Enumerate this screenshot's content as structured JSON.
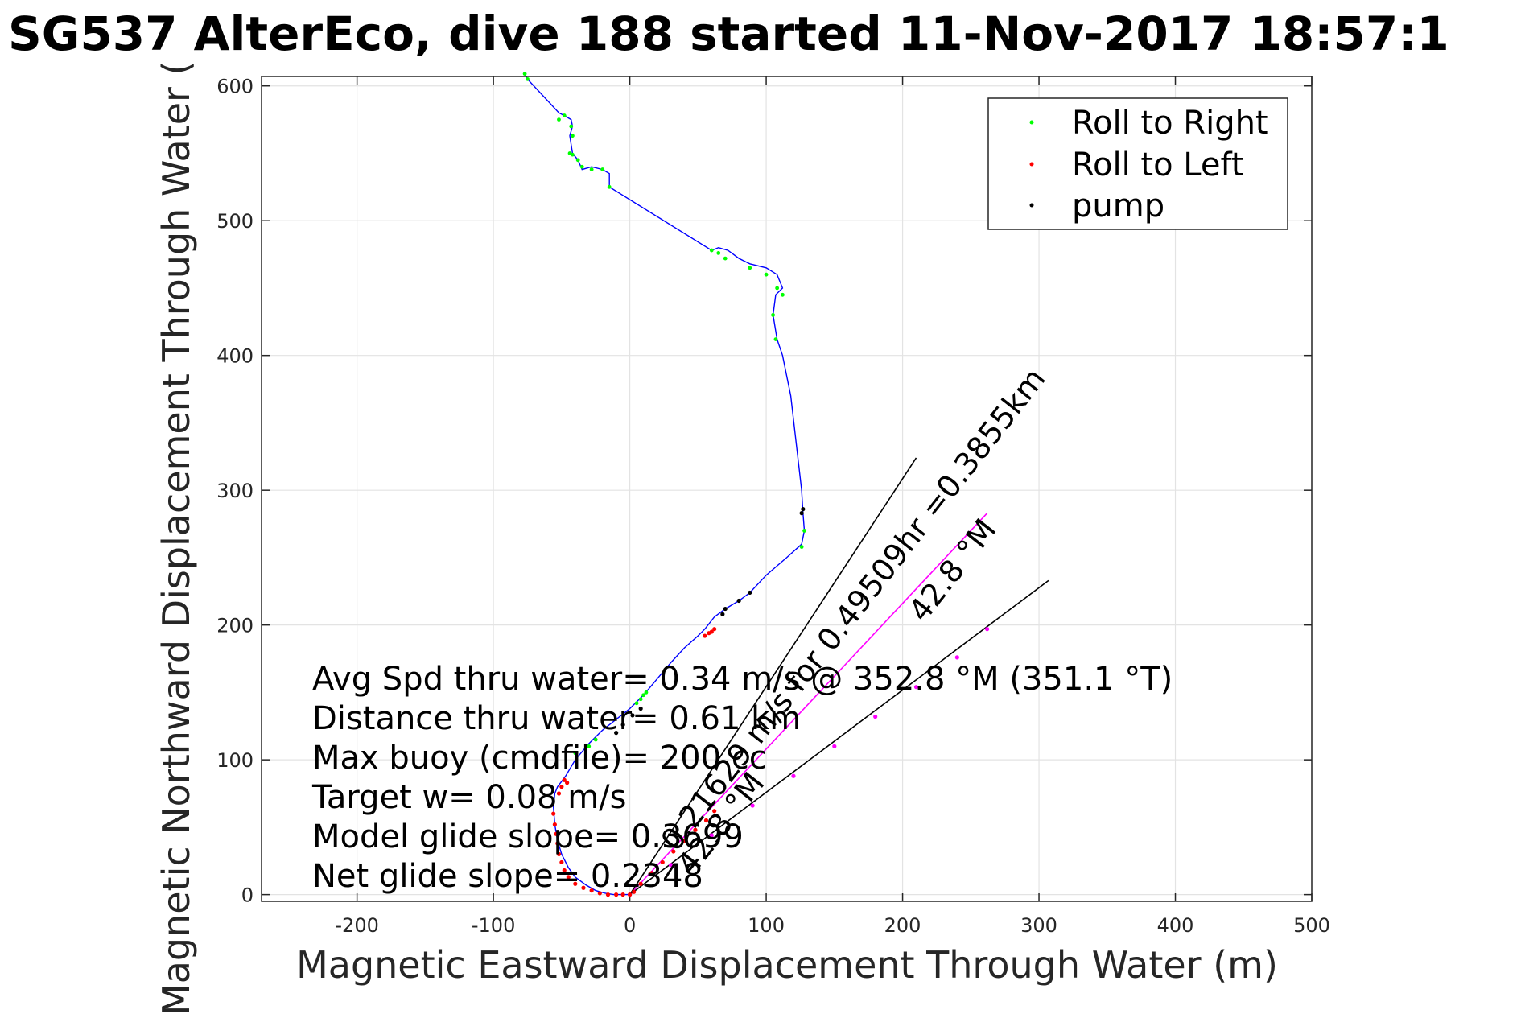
{
  "chart_data": {
    "type": "scatter",
    "title": "SG537 AlterEco, dive 188 started 11-Nov-2017 18:57:1",
    "xlabel": "Magnetic Eastward Displacement Through Water (m)",
    "ylabel": "Magnetic Northward Displacement Through Water (",
    "xlim": [
      -270,
      500
    ],
    "ylim": [
      -5,
      607
    ],
    "grid": true,
    "x_ticks": [
      -200,
      -100,
      0,
      100,
      200,
      300,
      400,
      500
    ],
    "y_ticks": [
      0,
      100,
      200,
      300,
      400,
      500,
      600
    ],
    "x_tick_labels": [
      "-200",
      "-100",
      "0",
      "100",
      "200",
      "300",
      "400",
      "500"
    ],
    "y_tick_labels": [
      "0",
      "100",
      "200",
      "300",
      "400",
      "500",
      "600"
    ],
    "legend": {
      "placement": "top-right",
      "entries": [
        {
          "label": "Roll to Right",
          "color": "#00ff00"
        },
        {
          "label": "Roll to Left",
          "color": "#ff0000"
        },
        {
          "label": "pump",
          "color": "#000000"
        }
      ]
    },
    "track": {
      "color": "#0000ff",
      "x": [
        0,
        -5,
        -12,
        -18,
        -25,
        -32,
        -40,
        -45,
        -50,
        -53,
        -55,
        -56,
        -55,
        -53,
        -50,
        -47,
        -40,
        -30,
        -20,
        -10,
        0,
        10,
        20,
        30,
        40,
        50,
        55,
        62,
        70,
        80,
        88,
        100,
        115,
        126,
        128,
        127,
        126,
        118,
        112,
        108,
        105,
        107,
        112,
        108,
        100,
        88,
        80,
        72,
        65,
        60,
        -15,
        -15,
        -20,
        -28,
        -35,
        -38,
        -42,
        -44,
        -42,
        -43,
        -48,
        -52,
        -75,
        -77
      ],
      "y": [
        0,
        0,
        0,
        1,
        3,
        7,
        13,
        20,
        30,
        40,
        52,
        65,
        75,
        80,
        84,
        88,
        100,
        112,
        122,
        130,
        138,
        148,
        160,
        172,
        183,
        192,
        197,
        206,
        212,
        218,
        224,
        237,
        250,
        260,
        270,
        283,
        300,
        370,
        400,
        412,
        430,
        445,
        450,
        460,
        465,
        468,
        472,
        478,
        480,
        478,
        525,
        535,
        538,
        540,
        538,
        545,
        550,
        563,
        570,
        575,
        578,
        580,
        605,
        609
      ]
    },
    "roll_right": {
      "x": [
        -75,
        -77,
        -52,
        -48,
        -43,
        -42,
        -44,
        -42,
        -38,
        -35,
        -28,
        -20,
        -15,
        60,
        65,
        70,
        88,
        100,
        108,
        112,
        105,
        107,
        128,
        126,
        10,
        8,
        5,
        12,
        -30,
        -25,
        -40
      ],
      "y": [
        605,
        609,
        575,
        578,
        570,
        563,
        550,
        549,
        545,
        540,
        538,
        538,
        525,
        478,
        476,
        472,
        465,
        460,
        450,
        445,
        430,
        412,
        270,
        258,
        148,
        145,
        142,
        150,
        110,
        115,
        105
      ]
    },
    "roll_left": {
      "x": [
        -56,
        -55,
        -54,
        -53,
        -52,
        -50,
        -48,
        -45,
        -40,
        -34,
        -28,
        -22,
        -16,
        -10,
        -5,
        0,
        8,
        16,
        24,
        32,
        40,
        48,
        56,
        62,
        55,
        58,
        60,
        62,
        -48,
        -50,
        -52,
        -46,
        3
      ],
      "y": [
        60,
        52,
        45,
        38,
        30,
        24,
        18,
        13,
        8,
        5,
        3,
        1,
        0,
        0,
        0,
        0,
        8,
        16,
        24,
        32,
        40,
        48,
        55,
        62,
        192,
        194,
        195,
        197,
        85,
        80,
        75,
        83,
        2
      ],
      "color": "#ff0000"
    },
    "pump": {
      "x": [
        126,
        127,
        88,
        80,
        70,
        68,
        8,
        2,
        -5,
        -10
      ],
      "y": [
        283,
        286,
        224,
        218,
        212,
        208,
        138,
        133,
        126,
        120
      ]
    },
    "segment_points": {
      "x": [
        0,
        30,
        60,
        90,
        120,
        150,
        180,
        210,
        240,
        262
      ],
      "y": [
        0,
        22,
        44,
        66,
        88,
        110,
        132,
        154,
        176,
        197
      ],
      "color": "#ff00ff"
    },
    "lines": [
      {
        "x": [
          0,
          262
        ],
        "y": [
          0,
          283
        ],
        "color": "#ff00ff"
      },
      {
        "x": [
          0,
          210
        ],
        "y": [
          0,
          324
        ],
        "color": "#000000"
      },
      {
        "x": [
          0,
          307
        ],
        "y": [
          0,
          233
        ],
        "color": "#000000"
      }
    ],
    "annotations": [
      "Avg Spd thru water=  0.34 m/s @ 352.8 °M (351.1 °T)",
      "Distance thru water=  0.61 km",
      "Max buoy (cmdfile)= 200 cc",
      "Target w= 0.08 m/s",
      "Model glide slope= 0.3699",
      "Net glide slope= 0.2348"
    ],
    "rotated_annotations": [
      "0.21629 m/s for 0.49509hr =0.3855km",
      "42.8 °M",
      "42.8 °M"
    ]
  }
}
